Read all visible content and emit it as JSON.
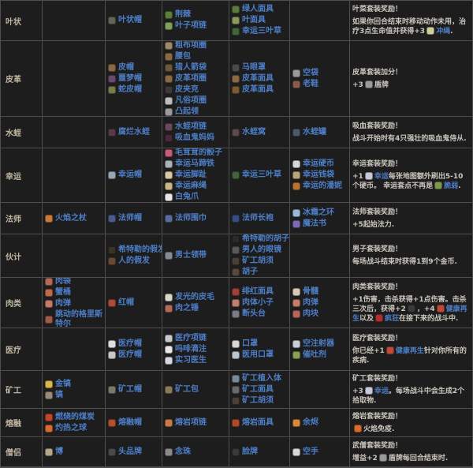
{
  "colors": {
    "background": "#1d1d1d",
    "grid_border": "#4e4e4e",
    "set_name_text": "#c0b6a2",
    "item_link": "#4d7ec7",
    "reward_text": "#cac5bd"
  },
  "rows": [
    {
      "set": "叶状",
      "items": [
        [],
        [
          {
            "n": "叶状帽",
            "c": "#63635a"
          }
        ],
        [
          {
            "n": "荆棘",
            "c": "#5d7d3b"
          },
          {
            "n": "叶子项链",
            "c": "#7fa05a"
          }
        ],
        [
          {
            "n": "绿人面具",
            "c": "#5a7a40"
          },
          {
            "n": "叶面具",
            "c": "#8a9a5a"
          },
          {
            "n": "幸运三叶草",
            "c": "#44633a"
          }
        ],
        []
      ],
      "reward": [
        [
          {
            "t": "叶菜套装奖励！"
          }
        ],
        [
          {
            "t": "如果你回合结束时移动动作未用，治疗3点生命值并获得+3"
          },
          {
            "i": "#cfcf9a"
          },
          {
            "l": "冲绳"
          },
          {
            "t": "."
          }
        ]
      ]
    },
    {
      "set": "皮革",
      "items": [
        [],
        [
          {
            "n": "皮帽",
            "c": "#8a6a45"
          },
          {
            "n": "噩梦帽",
            "c": "#6a4a6a"
          },
          {
            "n": "蛇皮帽",
            "c": "#7a7a4a"
          }
        ],
        [
          {
            "n": "粗布项圈",
            "c": "#9a8a6a"
          },
          {
            "n": "腰包",
            "c": "#8a6a45"
          },
          {
            "n": "猎人箭袋",
            "c": "#6a5a3a"
          },
          {
            "n": "皮革项圈",
            "c": "#8a6a45"
          },
          {
            "n": "皮夹克",
            "c": "#3a3a3a"
          },
          {
            "n": "凡俗项圈",
            "c": "#bdbdbd"
          },
          {
            "n": "凸起领",
            "c": "#9a9a9a"
          }
        ],
        [
          {
            "n": "马眼罩",
            "c": "#4a4a4a"
          },
          {
            "n": "皮革面具",
            "c": "#8a6a45"
          },
          {
            "n": "皮革面具",
            "c": "#7a5a35"
          }
        ],
        [
          {
            "n": "空袋",
            "c": "#9a9a9a"
          },
          {
            "n": "老鞋",
            "c": "#8a5a4a"
          }
        ]
      ],
      "reward": [
        [
          {
            "t": "皮革套装加分！"
          }
        ],
        [
          {
            "t": "+3"
          },
          {
            "i": "#9a9a9a"
          },
          {
            "t": "盾牌"
          }
        ]
      ]
    },
    {
      "set": "水蛭",
      "items": [
        [],
        [
          {
            "n": "腐烂水蛭",
            "c": "#5a3a4a"
          }
        ],
        [
          {
            "n": "水蛭项链",
            "c": "#6a4a5a"
          },
          {
            "n": "吸血鬼妈妈",
            "c": "#4a2a3a"
          }
        ],
        [
          {
            "n": "水蛭窝",
            "c": "#5a4a4a"
          }
        ],
        [
          {
            "n": "水蛭罐",
            "c": "#4a5a6a"
          }
        ]
      ],
      "reward": [
        [
          {
            "t": "吸血套装奖励！"
          }
        ],
        [
          {
            "t": "战斗开始时有4只强壮的吸血鬼侍从."
          }
        ]
      ]
    },
    {
      "set": "幸运",
      "items": [
        [],
        [
          {
            "n": "幸运帽",
            "c": "#9aa5b5"
          }
        ],
        [
          {
            "n": "毛茸茸的骰子",
            "c": "#c85a7a"
          },
          {
            "n": "幸运马蹄铁",
            "c": "#b0b0b8"
          },
          {
            "n": "幸运脚趾",
            "c": "#d8c8a8"
          },
          {
            "n": "幸运麻绳",
            "c": "#c8b888"
          },
          {
            "n": "白兔爪",
            "c": "#e8e8e8"
          }
        ],
        [
          {
            "n": "幸运三叶草",
            "c": "#44633a"
          }
        ],
        [
          {
            "n": "幸运硬币",
            "c": "#d8d8d8"
          },
          {
            "n": "幸运钱袋",
            "c": "#b8a878"
          },
          {
            "n": "幸运的潘妮",
            "c": "#b87333"
          }
        ]
      ],
      "reward": [
        [
          {
            "t": "幸运套装奖励！"
          }
        ],
        [
          {
            "t": "+1"
          },
          {
            "i": "#c8c8d8"
          },
          {
            "l": "幸运"
          },
          {
            "t": "每张地图额外刷出5-10个硬币。 幸运套点不再是"
          },
          {
            "i": "#7a9a4a"
          },
          {
            "l": "脆弱"
          },
          {
            "t": "."
          }
        ]
      ]
    },
    {
      "set": "法师",
      "items": [
        [
          {
            "n": "火焰之杖",
            "c": "#c87a3a"
          }
        ],
        [
          {
            "n": "法师帽",
            "c": "#4a5a8a"
          }
        ],
        [
          {
            "n": "法师围巾",
            "c": "#5a6a9a"
          }
        ],
        [
          {
            "n": "法师长袍",
            "c": "#3a4a7a"
          }
        ],
        [
          {
            "n": "冰霜之环",
            "c": "#9ab8d8"
          },
          {
            "n": "魔法书",
            "c": "#7a6ab8"
          }
        ]
      ],
      "reward": [
        [
          {
            "t": "法师套装奖励！"
          }
        ],
        [
          {
            "t": "+5起始法力."
          }
        ]
      ]
    },
    {
      "set": "伙计",
      "items": [
        [],
        [
          {
            "n": "希特勒的假发",
            "c": "#3a332c"
          },
          {
            "n": "人的假发",
            "c": "#6a4a35"
          }
        ],
        [
          {
            "n": "男士领带",
            "c": "#8a8a95"
          }
        ],
        [
          {
            "n": "希特勒的胡子",
            "c": "#2f2a26"
          },
          {
            "n": "男人的眼镜",
            "c": "#5a5a5a"
          },
          {
            "n": "矿工胡须",
            "c": "#4a4038"
          },
          {
            "n": "胡子",
            "c": "#57493c"
          }
        ],
        []
      ],
      "reward": [
        [
          {
            "t": "男子套装奖励！"
          }
        ],
        [
          {
            "t": "每场战斗结束时获得1到9个金币."
          }
        ]
      ]
    },
    {
      "set": "肉类",
      "items": [
        [
          {
            "n": "肉袋",
            "c": "#b06a5a"
          },
          {
            "n": "蟹桶",
            "c": "#c06a4a"
          },
          {
            "n": "肉弹",
            "c": "#c57a6a"
          },
          {
            "n": "跳动的格里斯特尔",
            "c": "#a05a4a"
          }
        ],
        [
          {
            "n": "红帽",
            "c": "#b04a3a"
          }
        ],
        [
          {
            "n": "发光的皮毛",
            "c": "#d8d8c8"
          },
          {
            "n": "肉之锤",
            "c": "#b06a5a"
          }
        ],
        [
          {
            "n": "绯红面具",
            "c": "#a04038"
          },
          {
            "n": "肉体小子",
            "c": "#c08070"
          },
          {
            "n": "断头台",
            "c": "#7a7a85"
          }
        ],
        [
          {
            "n": "骨髓",
            "c": "#d8c8b8"
          },
          {
            "n": "肉弹",
            "c": "#c57a6a"
          },
          {
            "n": "肉块",
            "c": "#b5655a"
          }
        ]
      ],
      "reward": [
        [
          {
            "t": "肉类套装奖励！"
          }
        ],
        [
          {
            "t": "+1伤害，击杀获得+1点伤害。击杀三次后，获得+2"
          },
          {
            "i": "#3a3a3a"
          },
          {
            "t": "，+4"
          },
          {
            "i": "#c04a3a"
          },
          {
            "l": "健康再生"
          },
          {
            "t": "以及"
          },
          {
            "i": "#b03030"
          },
          {
            "l": "疯狂"
          },
          {
            "t": "在接下来的战斗中."
          }
        ]
      ]
    },
    {
      "set": "医疗",
      "items": [
        [],
        [
          {
            "n": "医疗帽",
            "c": "#e0e0e0"
          },
          {
            "n": "医疗帽",
            "c": "#c8c8c8"
          }
        ],
        [
          {
            "n": "医疗项链",
            "c": "#c8c8d0"
          },
          {
            "n": "吗啡滴注",
            "c": "#e8e8e8"
          },
          {
            "n": "实习医生",
            "c": "#d8d8e0"
          }
        ],
        [
          {
            "n": "口罩",
            "c": "#d8d8d8"
          },
          {
            "n": "医用口罩",
            "c": "#b8c8d0"
          }
        ],
        [
          {
            "n": "空注射器",
            "c": "#c8d0d8"
          },
          {
            "n": "催吐剂",
            "c": "#8aa05a"
          }
        ]
      ],
      "reward": [
        [
          {
            "t": "医疗套装奖励！"
          }
        ],
        [
          {
            "t": "你已经+1"
          },
          {
            "i": "#c04a3a"
          },
          {
            "l": "健康再生"
          },
          {
            "t": "针对你所有的疾病."
          }
        ]
      ]
    },
    {
      "set": "矿工",
      "items": [
        [
          {
            "n": "金镐",
            "c": "#d8b84a"
          },
          {
            "n": "镐",
            "c": "#9a8a7a"
          }
        ],
        [
          {
            "n": "矿工帽",
            "c": "#7a7a6a"
          }
        ],
        [
          {
            "n": "矿工包",
            "c": "#8a7a5a"
          }
        ],
        [
          {
            "n": "矿工植入体",
            "c": "#7a8a9a"
          },
          {
            "n": "矿工面具",
            "c": "#6a6a6a"
          },
          {
            "n": "矿工胡须",
            "c": "#4a4038"
          }
        ],
        []
      ],
      "reward": [
        [
          {
            "t": "矿工套装奖励！"
          }
        ],
        [
          {
            "t": "+3"
          },
          {
            "i": "#c8c8d8"
          },
          {
            "l": "幸运"
          },
          {
            "t": "。每场战斗中会生成2个拾取物."
          }
        ]
      ]
    },
    {
      "set": "熔融",
      "items": [
        [
          {
            "n": "燃烧的煤炭",
            "c": "#c0452a"
          },
          {
            "n": "灼热之球",
            "c": "#d86a30"
          }
        ],
        [
          {
            "n": "熔融帽",
            "c": "#b05030"
          }
        ],
        [
          {
            "n": "熔岩项链",
            "c": "#c87a4a"
          }
        ],
        [
          {
            "n": "熔岩面具",
            "c": "#b04a28"
          }
        ],
        [
          {
            "n": "余烬",
            "c": "#d8883a"
          }
        ]
      ],
      "reward": [
        [
          {
            "t": "熔岩套装奖励！"
          }
        ],
        [
          {
            "i": "#d86a30"
          },
          {
            "t": "火焰免疫."
          }
        ]
      ]
    },
    {
      "set": "僧侣",
      "items": [
        [
          {
            "n": "博",
            "c": "#b8a88a"
          }
        ],
        [
          {
            "n": "头品牌",
            "c": "#4a4a4a"
          }
        ],
        [
          {
            "n": "念珠",
            "c": "#8a8a8a"
          }
        ],
        [
          {
            "n": "脸牌",
            "c": "#3a3a3a"
          }
        ],
        [
          {
            "n": "空手",
            "c": "#d8d8d8"
          }
        ]
      ],
      "reward": [
        [
          {
            "t": "武僧套装奖励！"
          }
        ],
        [
          {
            "t": "增益+2"
          },
          {
            "i": "#9a9a9a"
          },
          {
            "t": "盾牌每回合结束时."
          }
        ]
      ]
    }
  ]
}
